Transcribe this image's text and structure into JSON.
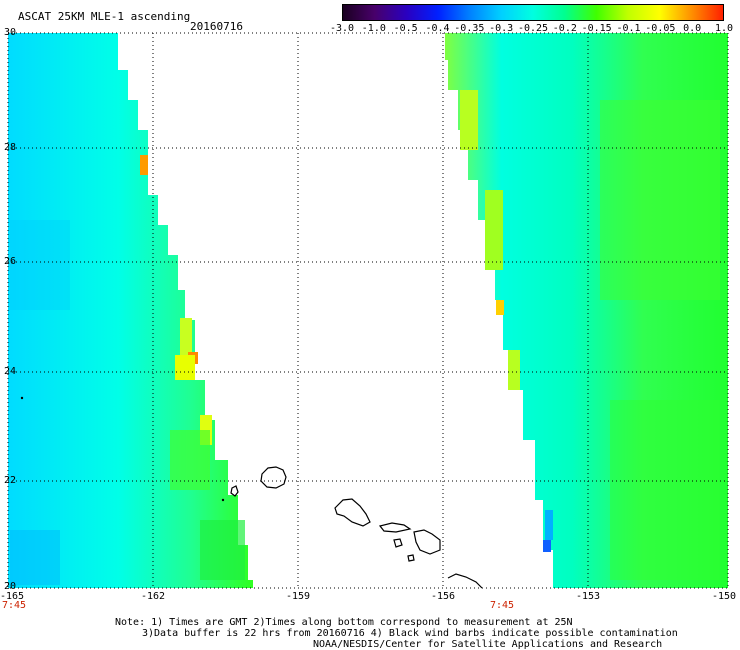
{
  "header": {
    "product_title": "ASCAT 25KM MLE-1 ascending",
    "date": "20160716"
  },
  "colorbar": {
    "ticks": [
      "-3.0",
      "-1.0",
      "-0.5",
      "-0.4",
      "-0.35",
      "-0.3",
      "-0.25",
      "-0.2",
      "-0.15",
      "-0.1",
      "-0.05",
      "0.0",
      "1.0"
    ],
    "colors": [
      "#1a0020",
      "#48006a",
      "#2a00c0",
      "#0020ff",
      "#0080ff",
      "#00d0ff",
      "#00ffe0",
      "#00ff90",
      "#40ff00",
      "#c0ff00",
      "#ffff00",
      "#ff9000",
      "#ff2000"
    ]
  },
  "axes": {
    "lat_labels": [
      "30",
      "28",
      "26",
      "24",
      "22",
      "20"
    ],
    "lon_labels": [
      "-165",
      "-162",
      "-159",
      "-156",
      "-153",
      "-150"
    ],
    "pass_times": [
      "7:45",
      "7:45"
    ]
  },
  "notes": {
    "line1": "Note: 1) Times are GMT 2)Times along bottom correspond to measurement at 25N",
    "line2": "3)Data buffer is 22 hrs from 20160716 4) Black wind barbs indicate possible contamination",
    "line3": "NOAA/NESDIS/Center for Satellite Applications and Research"
  },
  "map_style": {
    "swath_fill_main": "#00ffd8",
    "coast_color": "#000000",
    "grid_color": "#000000"
  }
}
